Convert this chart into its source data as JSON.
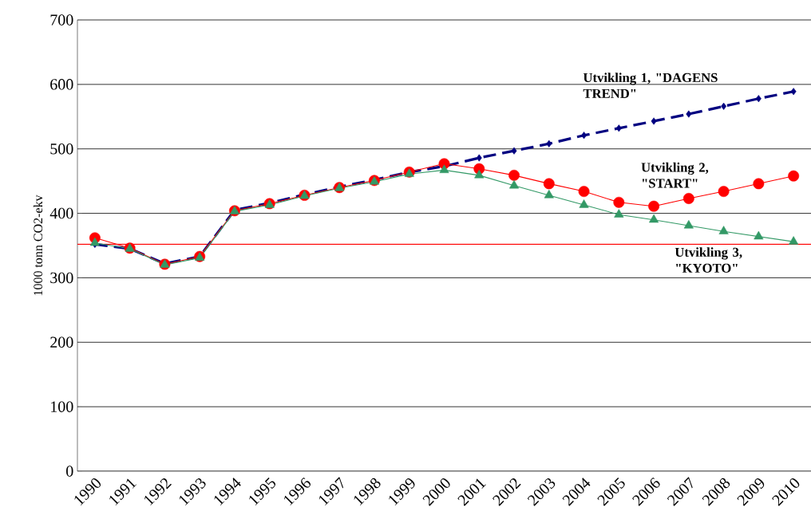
{
  "chart_data": {
    "type": "line",
    "ylabel": "1000 tonn CO2-ekv",
    "categories": [
      "1990",
      "1991",
      "1992",
      "1993",
      "1994",
      "1995",
      "1996",
      "1997",
      "1998",
      "1999",
      "2000",
      "2001",
      "2002",
      "2003",
      "2004",
      "2005",
      "2006",
      "2007",
      "2008",
      "2009",
      "2010"
    ],
    "series": [
      {
        "color": "#000080",
        "marker": "diamond",
        "line_style": "dashed",
        "values": [
          352,
          345,
          322,
          333,
          405,
          416,
          429,
          441,
          452,
          464,
          473,
          486,
          497,
          508,
          521,
          532,
          543,
          554,
          566,
          578,
          589
        ]
      },
      {
        "color": "#ff0000",
        "marker": "circle",
        "line_style": "solid",
        "values": [
          362,
          346,
          321,
          333,
          404,
          415,
          428,
          440,
          451,
          464,
          477,
          469,
          459,
          446,
          434,
          417,
          411,
          423,
          434,
          446,
          458
        ]
      },
      {
        "color": "#339966",
        "marker": "triangle",
        "line_style": "solid",
        "values": [
          354,
          345,
          320,
          331,
          403,
          413,
          427,
          439,
          449,
          461,
          467,
          459,
          443,
          428,
          413,
          398,
          390,
          381,
          372,
          364,
          356
        ]
      }
    ],
    "ylim": [
      0,
      700
    ],
    "yticks": [
      0,
      100,
      200,
      300,
      400,
      500,
      600,
      700
    ],
    "grid": "y",
    "ref_lines": [
      {
        "axis": "y",
        "value": 352,
        "color": "#ff0000"
      }
    ],
    "annotations": [
      "Utvikling 1, \"DAGENS TREND\"",
      "Utvikling 2, \"START\"",
      "Utvikling 3, \"KYOTO\""
    ]
  }
}
